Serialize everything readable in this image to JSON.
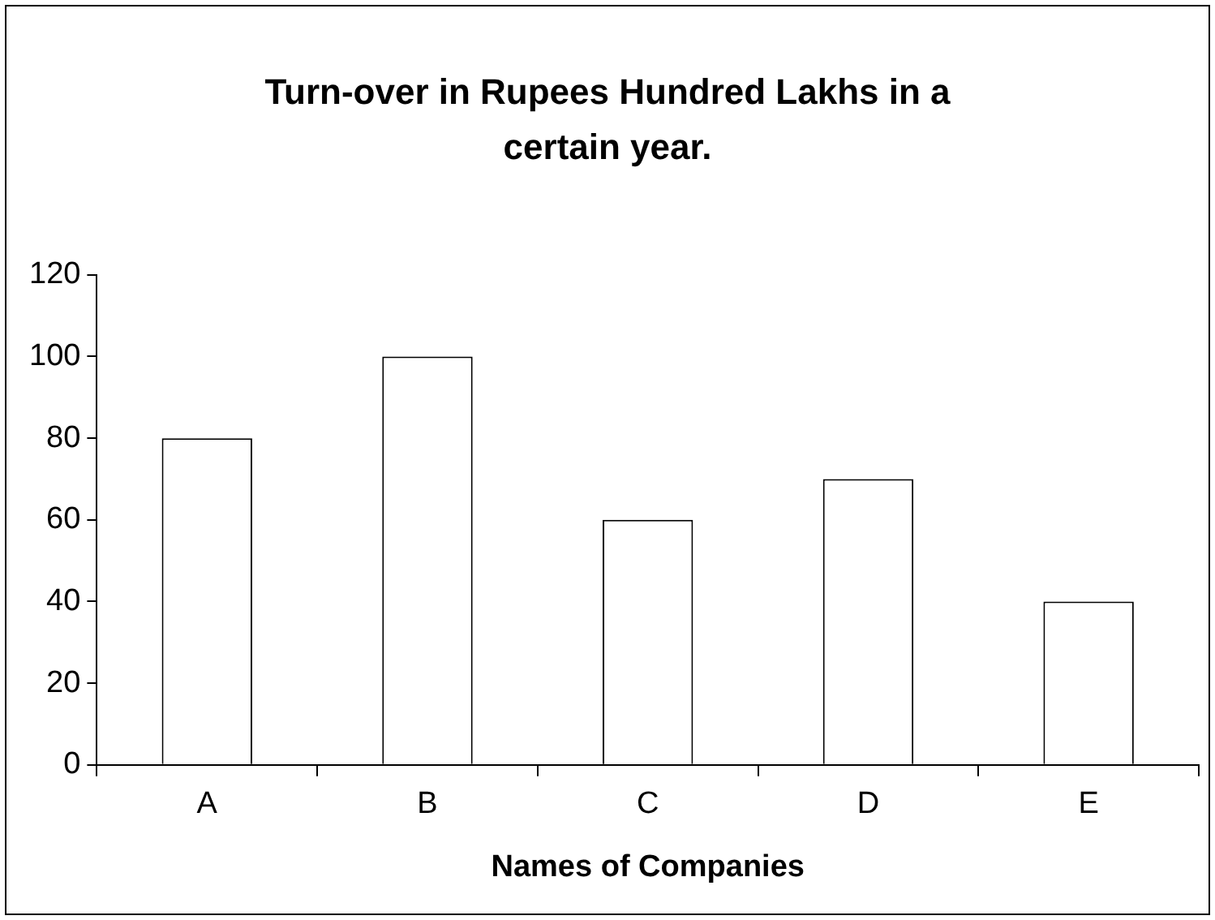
{
  "chart_data": {
    "type": "bar",
    "title": "Turn-over in Rupees Hundred Lakhs in a certain year.",
    "xlabel": "Names of Companies",
    "categories": [
      "A",
      "B",
      "C",
      "D",
      "E"
    ],
    "values": [
      80,
      100,
      60,
      70,
      40
    ],
    "color": "#ffffff",
    "ylim": [
      0,
      120
    ],
    "yticks": [
      0,
      20,
      40,
      60,
      80,
      100,
      120
    ]
  }
}
